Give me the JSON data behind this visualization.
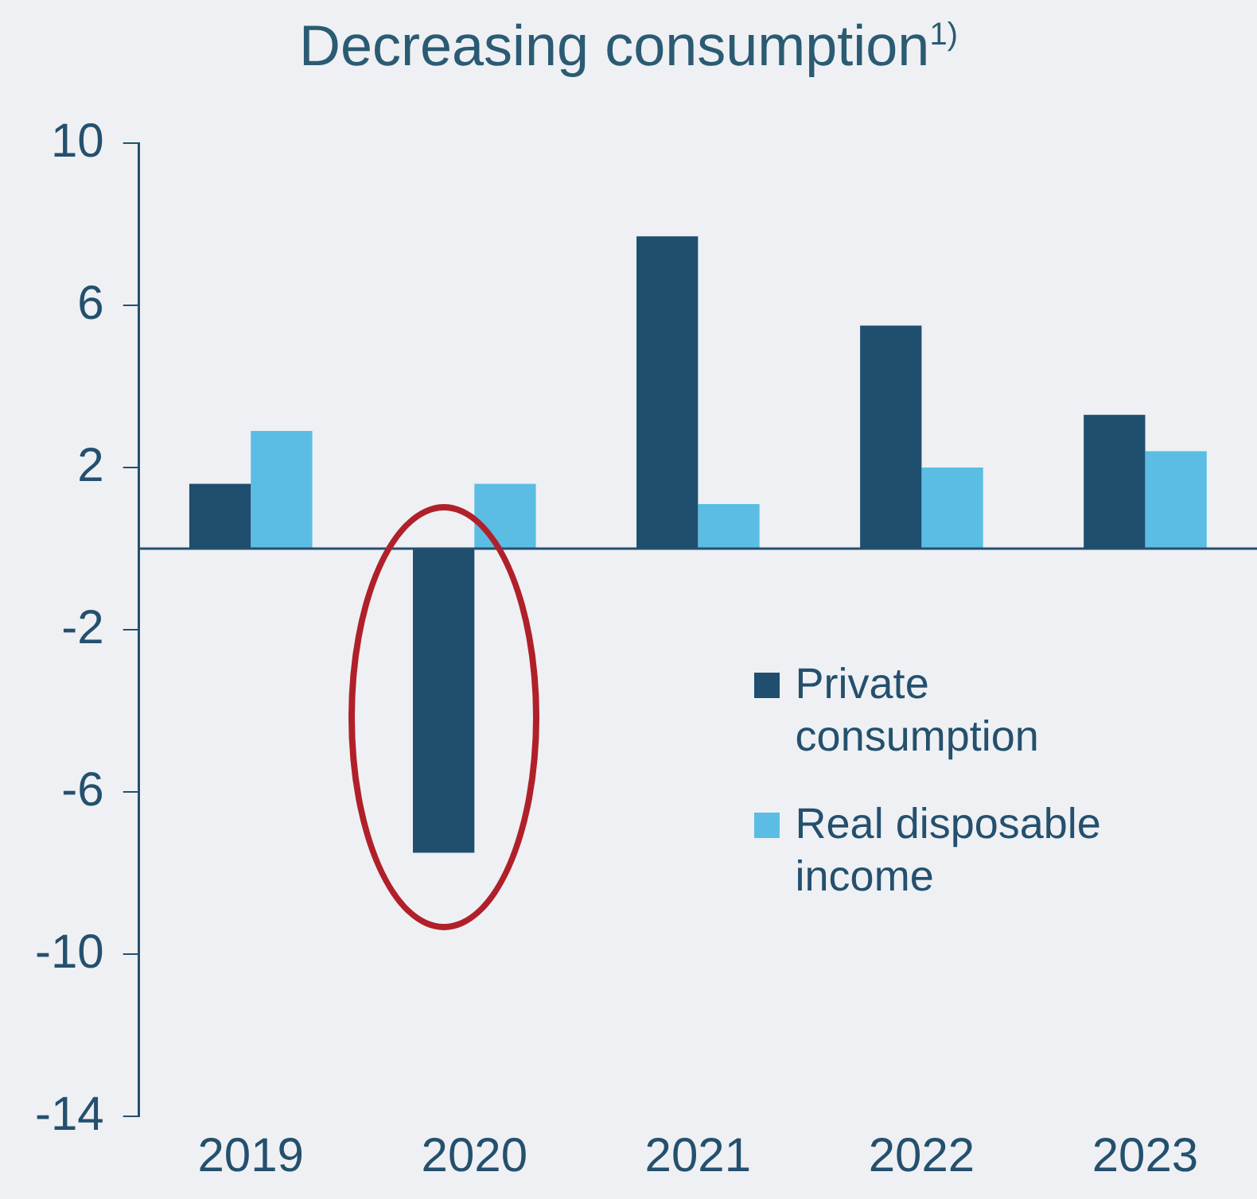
{
  "chart_data": {
    "type": "bar",
    "title": "Decreasing consumption$^{1)}$",
    "categories": [
      "2019",
      "2020",
      "2021",
      "2022",
      "2023"
    ],
    "series": [
      {
        "name": "Private consumption",
        "color": "#1f4e6e",
        "values": [
          1.6,
          -7.5,
          7.7,
          5.5,
          3.3
        ]
      },
      {
        "name": "Real disposable income",
        "color": "#5bbde4",
        "values": [
          2.9,
          1.6,
          1.1,
          2.0,
          2.4
        ]
      }
    ],
    "ylim": [
      -14,
      10
    ],
    "yticks": [
      -14,
      -10,
      -6,
      -2,
      2,
      6,
      10
    ],
    "grid": false,
    "ref_lines": [
      {
        "axis": "y",
        "value": 0,
        "color": "#24506e"
      }
    ],
    "legend": "bottom right"
  }
}
